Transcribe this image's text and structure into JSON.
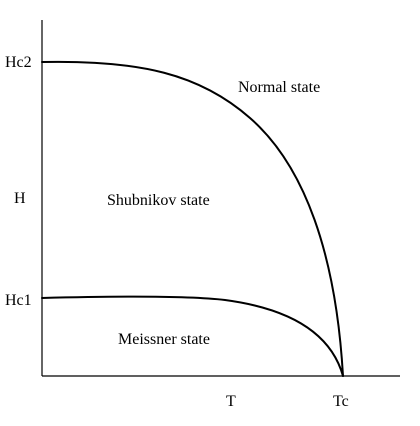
{
  "y_axis_label": "H",
  "x_axis_label": "T",
  "ticks": {
    "hc2": "Hc2",
    "hc1": "Hc1",
    "tc": "Tc"
  },
  "regions": {
    "normal": "Normal state",
    "shubnikov": "Shubnikov state",
    "meissner": "Meissner state"
  },
  "colors": {
    "ink": "#000000",
    "background": "#ffffff"
  }
}
